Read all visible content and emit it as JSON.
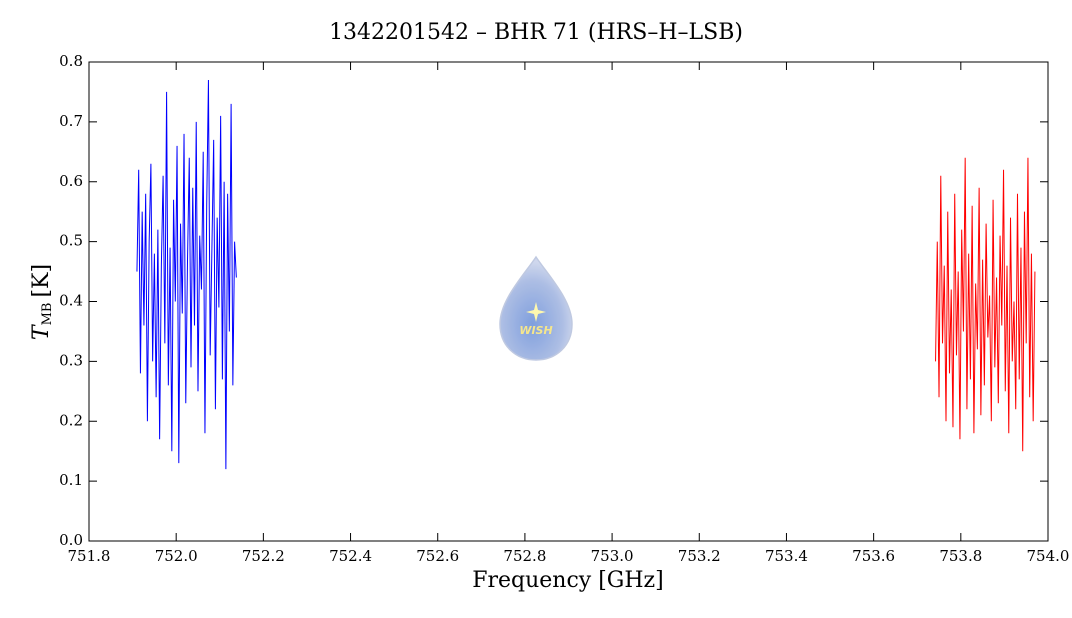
{
  "chart_data": {
    "type": "line",
    "title": "1342201542 – BHR 71 (HRS–H–LSB)",
    "xlabel": "Frequency [GHz]",
    "ylabel": {
      "symbol": "T",
      "subscript": "MB",
      "unit": "[K]"
    },
    "logo_text": "WISH",
    "xlim": [
      751.8,
      754.0
    ],
    "ylim": [
      0,
      0.8
    ],
    "xticks": [
      751.8,
      {
        "value": 752,
        "label": "752.0"
      },
      752.2,
      752.4,
      752.6,
      752.8,
      {
        "value": 753,
        "label": "753.0"
      },
      753.2,
      753.4,
      753.6,
      753.8,
      {
        "value": 754,
        "label": "754.0"
      }
    ],
    "yticks": [
      {
        "value": 0,
        "label": "0.0"
      },
      0.1,
      0.2,
      0.3,
      0.4,
      0.5,
      0.6,
      0.7,
      0.8
    ],
    "series": [
      {
        "color": "#0000ff",
        "x": [
          751.91,
          751.914,
          751.918,
          751.922,
          751.926,
          751.93,
          751.934,
          751.938,
          751.942,
          751.946,
          751.95,
          751.954,
          751.958,
          751.962,
          751.966,
          751.97,
          751.974,
          751.978,
          751.982,
          751.986,
          751.99,
          751.994,
          751.998,
          752.002,
          752.006,
          752.01,
          752.014,
          752.018,
          752.022,
          752.026,
          752.03,
          752.034,
          752.038,
          752.042,
          752.046,
          752.05,
          752.054,
          752.058,
          752.062,
          752.066,
          752.07,
          752.074,
          752.078,
          752.082,
          752.086,
          752.09,
          752.094,
          752.098,
          752.102,
          752.106,
          752.11,
          752.114,
          752.118,
          752.122,
          752.126,
          752.13,
          752.134,
          752.138
        ],
        "values": [
          0.45,
          0.62,
          0.28,
          0.55,
          0.36,
          0.58,
          0.2,
          0.5,
          0.63,
          0.3,
          0.48,
          0.24,
          0.52,
          0.17,
          0.46,
          0.61,
          0.33,
          0.75,
          0.26,
          0.49,
          0.15,
          0.57,
          0.4,
          0.66,
          0.13,
          0.53,
          0.38,
          0.68,
          0.23,
          0.47,
          0.64,
          0.29,
          0.59,
          0.36,
          0.7,
          0.25,
          0.51,
          0.42,
          0.65,
          0.18,
          0.56,
          0.77,
          0.31,
          0.49,
          0.67,
          0.22,
          0.54,
          0.39,
          0.71,
          0.27,
          0.6,
          0.12,
          0.58,
          0.35,
          0.73,
          0.26,
          0.5,
          0.44
        ]
      },
      {
        "color": "#ff0000",
        "x": [
          753.742,
          753.746,
          753.75,
          753.754,
          753.758,
          753.762,
          753.766,
          753.77,
          753.774,
          753.778,
          753.782,
          753.786,
          753.79,
          753.794,
          753.798,
          753.802,
          753.806,
          753.81,
          753.814,
          753.818,
          753.822,
          753.826,
          753.83,
          753.834,
          753.838,
          753.842,
          753.846,
          753.85,
          753.854,
          753.858,
          753.862,
          753.866,
          753.87,
          753.874,
          753.878,
          753.882,
          753.886,
          753.89,
          753.894,
          753.898,
          753.902,
          753.906,
          753.91,
          753.914,
          753.918,
          753.922,
          753.926,
          753.93,
          753.934,
          753.938,
          753.942,
          753.946,
          753.95,
          753.954,
          753.958,
          753.962,
          753.966,
          753.97
        ],
        "values": [
          0.3,
          0.5,
          0.24,
          0.61,
          0.33,
          0.46,
          0.2,
          0.55,
          0.28,
          0.42,
          0.19,
          0.58,
          0.31,
          0.45,
          0.17,
          0.52,
          0.35,
          0.64,
          0.22,
          0.48,
          0.27,
          0.56,
          0.18,
          0.43,
          0.32,
          0.59,
          0.21,
          0.47,
          0.26,
          0.53,
          0.34,
          0.41,
          0.2,
          0.57,
          0.29,
          0.44,
          0.23,
          0.51,
          0.36,
          0.62,
          0.25,
          0.46,
          0.18,
          0.54,
          0.3,
          0.4,
          0.22,
          0.58,
          0.27,
          0.49,
          0.15,
          0.55,
          0.33,
          0.64,
          0.24,
          0.48,
          0.2,
          0.45
        ]
      }
    ]
  }
}
